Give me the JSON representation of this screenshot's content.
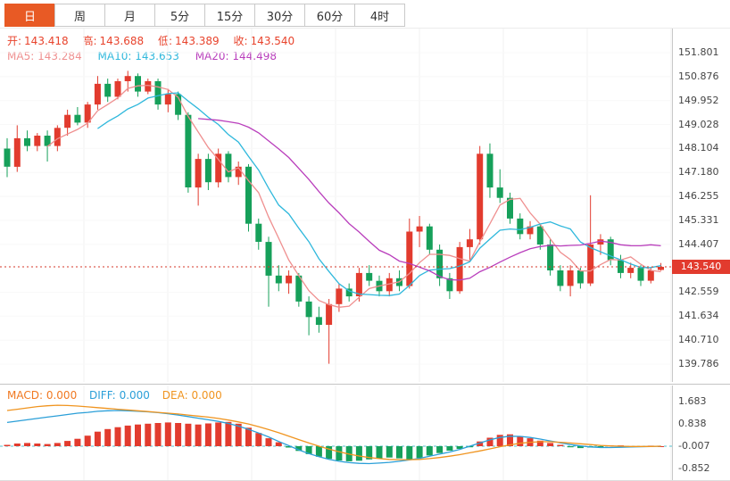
{
  "tabs": [
    {
      "label": "日",
      "active": true
    },
    {
      "label": "周",
      "active": false
    },
    {
      "label": "月",
      "active": false
    },
    {
      "label": "5分",
      "active": false
    },
    {
      "label": "15分",
      "active": false
    },
    {
      "label": "30分",
      "active": false
    },
    {
      "label": "60分",
      "active": false
    },
    {
      "label": "4时",
      "active": false
    }
  ],
  "ohlc": {
    "open_label": "开:",
    "open": "143.418",
    "high_label": "高:",
    "high": "143.688",
    "low_label": "低:",
    "low": "143.389",
    "close_label": "收:",
    "close": "143.540"
  },
  "ma": [
    {
      "label": "MA5:",
      "value": "143.284"
    },
    {
      "label": "MA10:",
      "value": "143.653"
    },
    {
      "label": "MA20:",
      "value": "144.498"
    }
  ],
  "macd_header": [
    {
      "label": "MACD:",
      "value": "0.000"
    },
    {
      "label": "DIFF:",
      "value": "0.000"
    },
    {
      "label": "DEA:",
      "value": "0.000"
    }
  ],
  "price_line": {
    "value": 143.54,
    "label": "143.540"
  },
  "colors": {
    "up": "#e23b2e",
    "down": "#16a05a",
    "accent_tab": "#e85a25",
    "ohlc_text": "#e8432c",
    "ma5": "#ef8f8f",
    "ma10": "#2fb8dc",
    "ma20": "#b93ebc",
    "macd_label": "#f07820",
    "diff": "#2b9fd8",
    "dea": "#f0941f",
    "price_line": "#d4372a",
    "zero_line": "#53c3cf"
  },
  "chart_data": [
    {
      "type": "candlestick",
      "name": "price-panel",
      "title": "",
      "xlabel": "",
      "ylabel": "",
      "ylim": [
        139.1,
        152.73
      ],
      "grid": "light-vertical",
      "legend_position": "top-left-overlay",
      "axis_ticks": [
        "151.801",
        "150.876",
        "149.952",
        "149.028",
        "148.104",
        "147.180",
        "146.255",
        "145.331",
        "144.407",
        "142.559",
        "141.634",
        "140.710",
        "139.786"
      ],
      "current_price": 143.54,
      "ma_windows": [
        5,
        10,
        20
      ],
      "ma_values_shown": {
        "MA5": 143.284,
        "MA10": 143.653,
        "MA20": 144.498
      },
      "candles_format": [
        "open",
        "high",
        "low",
        "close"
      ],
      "candles": [
        [
          148.1,
          148.5,
          147.0,
          147.4
        ],
        [
          147.4,
          149.0,
          147.2,
          148.5
        ],
        [
          148.5,
          148.8,
          148.0,
          148.2
        ],
        [
          148.2,
          148.7,
          148.0,
          148.6
        ],
        [
          148.6,
          148.8,
          147.6,
          148.2
        ],
        [
          148.2,
          149.0,
          148.0,
          148.9
        ],
        [
          148.9,
          149.6,
          148.6,
          149.4
        ],
        [
          149.4,
          149.7,
          149.0,
          149.1
        ],
        [
          149.1,
          149.9,
          148.9,
          149.8
        ],
        [
          149.8,
          150.9,
          149.6,
          150.6
        ],
        [
          150.6,
          150.8,
          149.9,
          150.1
        ],
        [
          150.1,
          150.8,
          150.0,
          150.7
        ],
        [
          150.7,
          151.1,
          150.3,
          150.9
        ],
        [
          150.9,
          151.0,
          150.1,
          150.3
        ],
        [
          150.3,
          150.8,
          150.2,
          150.7
        ],
        [
          150.7,
          150.8,
          149.6,
          149.8
        ],
        [
          149.8,
          150.4,
          149.5,
          150.2
        ],
        [
          150.2,
          150.3,
          149.2,
          149.4
        ],
        [
          149.4,
          149.5,
          146.4,
          146.6
        ],
        [
          146.6,
          147.9,
          145.9,
          147.7
        ],
        [
          147.7,
          147.9,
          146.5,
          146.8
        ],
        [
          146.8,
          148.1,
          146.6,
          147.9
        ],
        [
          147.9,
          148.0,
          146.8,
          147.0
        ],
        [
          147.0,
          147.6,
          146.7,
          147.4
        ],
        [
          147.4,
          147.5,
          144.9,
          145.2
        ],
        [
          145.2,
          145.4,
          144.2,
          144.5
        ],
        [
          144.5,
          144.7,
          142.0,
          143.2
        ],
        [
          143.2,
          143.6,
          142.6,
          142.9
        ],
        [
          142.9,
          143.4,
          142.5,
          143.2
        ],
        [
          143.2,
          143.3,
          142.0,
          142.2
        ],
        [
          142.2,
          142.4,
          140.9,
          141.6
        ],
        [
          141.6,
          142.0,
          141.0,
          141.3
        ],
        [
          141.3,
          142.3,
          139.8,
          142.1
        ],
        [
          142.1,
          142.9,
          141.8,
          142.7
        ],
        [
          142.7,
          142.9,
          142.2,
          142.4
        ],
        [
          142.4,
          143.5,
          142.2,
          143.3
        ],
        [
          143.3,
          143.6,
          142.8,
          143.0
        ],
        [
          143.0,
          143.2,
          142.4,
          142.6
        ],
        [
          142.6,
          143.3,
          142.4,
          143.1
        ],
        [
          143.1,
          143.4,
          142.6,
          142.8
        ],
        [
          142.8,
          145.4,
          142.7,
          144.9
        ],
        [
          144.9,
          145.5,
          144.3,
          145.1
        ],
        [
          145.1,
          145.2,
          144.0,
          144.2
        ],
        [
          144.2,
          144.4,
          142.8,
          143.1
        ],
        [
          143.1,
          143.3,
          142.3,
          142.6
        ],
        [
          142.6,
          144.5,
          142.5,
          144.3
        ],
        [
          144.3,
          145.0,
          143.8,
          144.6
        ],
        [
          144.6,
          148.2,
          144.4,
          147.9
        ],
        [
          147.9,
          148.3,
          146.2,
          146.6
        ],
        [
          146.6,
          147.3,
          146.0,
          146.2
        ],
        [
          146.2,
          146.4,
          145.2,
          145.4
        ],
        [
          145.4,
          145.6,
          144.6,
          144.8
        ],
        [
          144.8,
          145.3,
          144.6,
          145.1
        ],
        [
          145.1,
          145.2,
          144.2,
          144.4
        ],
        [
          144.4,
          144.6,
          143.2,
          143.4
        ],
        [
          143.4,
          143.6,
          142.6,
          142.8
        ],
        [
          142.8,
          143.6,
          142.4,
          143.4
        ],
        [
          143.4,
          143.5,
          142.7,
          142.9
        ],
        [
          142.9,
          146.3,
          142.8,
          144.4
        ],
        [
          144.4,
          144.8,
          144.0,
          144.6
        ],
        [
          144.6,
          144.7,
          143.6,
          143.8
        ],
        [
          143.8,
          144.0,
          143.1,
          143.3
        ],
        [
          143.3,
          143.7,
          143.1,
          143.5
        ],
        [
          143.5,
          143.6,
          142.8,
          143.0
        ],
        [
          143.0,
          143.5,
          142.9,
          143.4
        ],
        [
          143.418,
          143.688,
          143.389,
          143.54
        ]
      ]
    },
    {
      "type": "bar",
      "name": "macd-panel",
      "title": "MACD(12,26,9)",
      "values_shown": {
        "MACD": 0.0,
        "DIFF": 0.0,
        "DEA": 0.0
      },
      "axis_ticks": [
        "1.683",
        "0.838",
        "-0.007",
        "-0.852"
      ],
      "ylim": [
        -1.2,
        2.3
      ],
      "hist": [
        0.05,
        0.1,
        0.12,
        0.1,
        0.08,
        0.12,
        0.2,
        0.28,
        0.4,
        0.55,
        0.65,
        0.72,
        0.78,
        0.82,
        0.85,
        0.88,
        0.9,
        0.88,
        0.85,
        0.82,
        0.86,
        0.9,
        0.92,
        0.85,
        0.7,
        0.5,
        0.3,
        0.15,
        -0.05,
        -0.18,
        -0.3,
        -0.4,
        -0.48,
        -0.54,
        -0.57,
        -0.55,
        -0.5,
        -0.46,
        -0.43,
        -0.46,
        -0.5,
        -0.45,
        -0.35,
        -0.26,
        -0.17,
        -0.1,
        -0.04,
        0.18,
        0.32,
        0.43,
        0.45,
        0.38,
        0.3,
        0.21,
        0.12,
        0.05,
        -0.04,
        -0.07,
        -0.05,
        -0.02,
        0.03,
        0.03,
        -0.02,
        -0.03,
        0.02,
        0.0
      ],
      "diff": [
        0.9,
        0.95,
        1.0,
        1.05,
        1.1,
        1.15,
        1.2,
        1.25,
        1.28,
        1.32,
        1.34,
        1.35,
        1.34,
        1.32,
        1.3,
        1.27,
        1.23,
        1.18,
        1.12,
        1.06,
        1.0,
        0.94,
        0.86,
        0.76,
        0.64,
        0.5,
        0.35,
        0.18,
        0.02,
        -0.14,
        -0.28,
        -0.4,
        -0.5,
        -0.57,
        -0.62,
        -0.65,
        -0.66,
        -0.64,
        -0.61,
        -0.57,
        -0.52,
        -0.46,
        -0.38,
        -0.3,
        -0.22,
        -0.12,
        0.0,
        0.12,
        0.24,
        0.33,
        0.38,
        0.37,
        0.33,
        0.27,
        0.2,
        0.13,
        0.06,
        0.01,
        -0.03,
        -0.05,
        -0.05,
        -0.04,
        -0.03,
        -0.02,
        -0.01,
        0.0
      ],
      "dea": [
        1.35,
        1.4,
        1.45,
        1.5,
        1.53,
        1.55,
        1.54,
        1.52,
        1.49,
        1.46,
        1.43,
        1.4,
        1.37,
        1.34,
        1.31,
        1.28,
        1.25,
        1.22,
        1.18,
        1.14,
        1.1,
        1.05,
        0.99,
        0.92,
        0.84,
        0.74,
        0.63,
        0.51,
        0.38,
        0.25,
        0.12,
        0.0,
        -0.11,
        -0.21,
        -0.3,
        -0.37,
        -0.43,
        -0.47,
        -0.5,
        -0.51,
        -0.51,
        -0.5,
        -0.47,
        -0.43,
        -0.38,
        -0.32,
        -0.25,
        -0.18,
        -0.1,
        -0.02,
        0.05,
        0.11,
        0.15,
        0.17,
        0.17,
        0.15,
        0.12,
        0.09,
        0.06,
        0.03,
        0.01,
        0.0,
        -0.01,
        -0.01,
        -0.01,
        0.0
      ]
    }
  ]
}
